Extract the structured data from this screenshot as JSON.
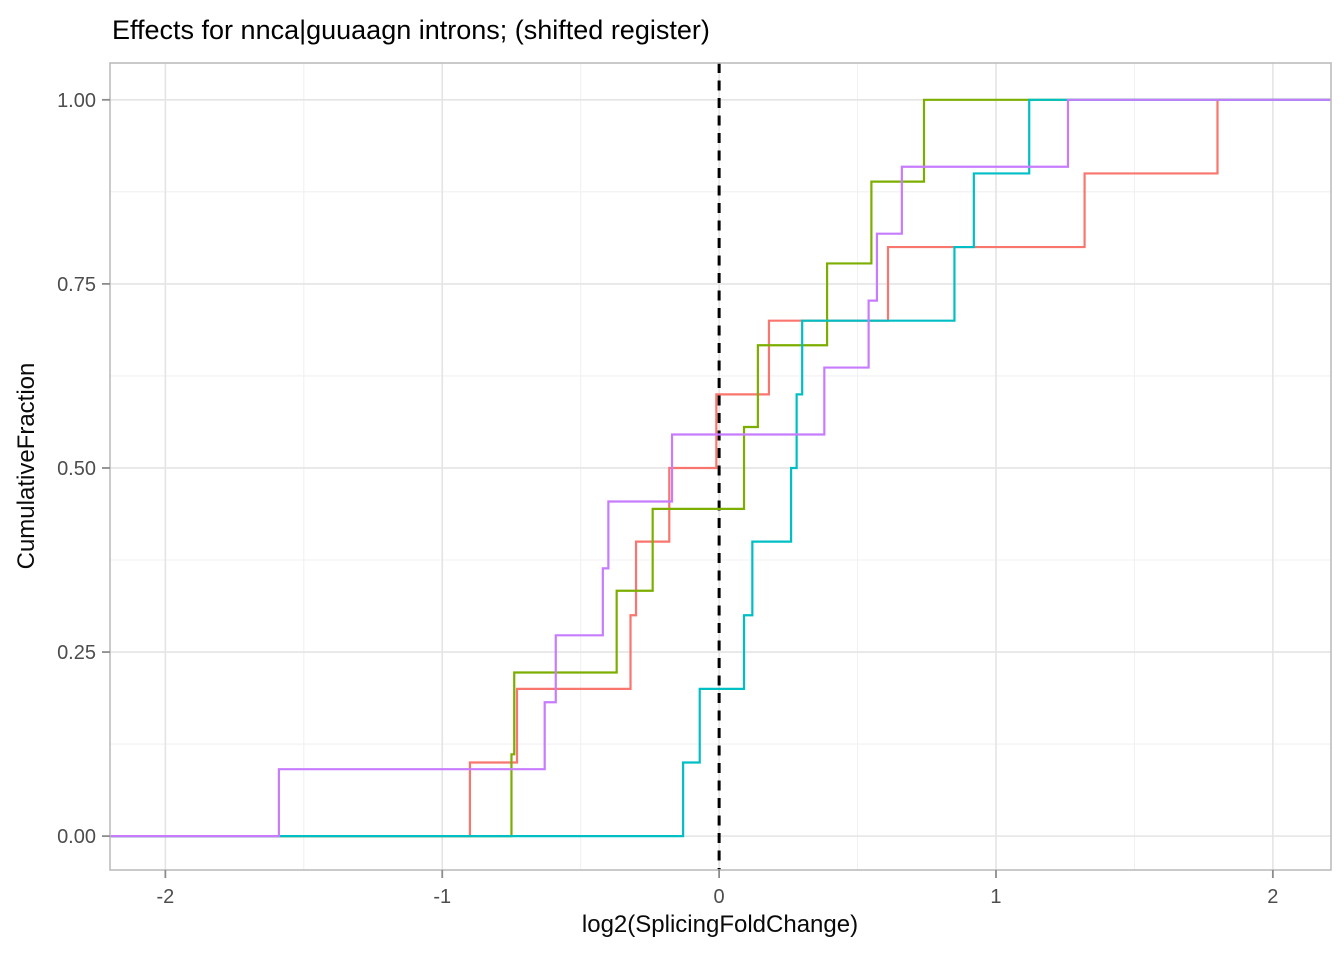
{
  "chart_data": {
    "type": "line",
    "subtype": "ecdf_step",
    "title": "Effects for nnca|guuaagn introns; (shifted register)",
    "xlabel": "log2(SplicingFoldChange)",
    "ylabel": "CumulativeFraction",
    "xlim": [
      -2.2,
      2.21
    ],
    "ylim": [
      -0.046,
      1.05
    ],
    "grid": true,
    "legend": "none",
    "x_ticks": [
      {
        "v": -2,
        "label": "-2"
      },
      {
        "v": -1,
        "label": "-1"
      },
      {
        "v": 0,
        "label": "0"
      },
      {
        "v": 1,
        "label": "1"
      },
      {
        "v": 2,
        "label": "2"
      }
    ],
    "y_ticks": [
      {
        "v": 0.0,
        "label": "0.00"
      },
      {
        "v": 0.25,
        "label": "0.25"
      },
      {
        "v": 0.5,
        "label": "0.50"
      },
      {
        "v": 0.75,
        "label": "0.75"
      },
      {
        "v": 1.0,
        "label": "1.00"
      }
    ],
    "x_minor": [
      -1.5,
      -0.5,
      0.5,
      1.5
    ],
    "y_minor": [
      0.125,
      0.375,
      0.625,
      0.875
    ],
    "vline": {
      "x": 0,
      "color": "#000000",
      "style": "dashed",
      "width": 3,
      "dash": "10 7.5"
    },
    "series": [
      {
        "name": "salmon",
        "color": "#F8766D",
        "n": 10,
        "points": [
          [
            -0.9,
            0.1
          ],
          [
            -0.73,
            0.2
          ],
          [
            -0.32,
            0.3
          ],
          [
            -0.3,
            0.4
          ],
          [
            -0.18,
            0.5
          ],
          [
            -0.01,
            0.6
          ],
          [
            0.18,
            0.7
          ],
          [
            0.61,
            0.8
          ],
          [
            1.32,
            0.9
          ],
          [
            1.8,
            1.0
          ]
        ]
      },
      {
        "name": "olive",
        "color": "#7CAE00",
        "n": 9,
        "points": [
          [
            -0.75,
            0.1111
          ],
          [
            -0.74,
            0.2222
          ],
          [
            -0.37,
            0.3333
          ],
          [
            -0.24,
            0.4444
          ],
          [
            0.09,
            0.5556
          ],
          [
            0.14,
            0.6667
          ],
          [
            0.39,
            0.7778
          ],
          [
            0.55,
            0.8889
          ],
          [
            0.74,
            1.0
          ]
        ]
      },
      {
        "name": "teal",
        "color": "#00BFC4",
        "n": 10,
        "points": [
          [
            -0.13,
            0.1
          ],
          [
            -0.07,
            0.2
          ],
          [
            0.09,
            0.3
          ],
          [
            0.12,
            0.4
          ],
          [
            0.26,
            0.5
          ],
          [
            0.28,
            0.6
          ],
          [
            0.3,
            0.7
          ],
          [
            0.85,
            0.8
          ],
          [
            0.92,
            0.9
          ],
          [
            1.12,
            1.0
          ]
        ]
      },
      {
        "name": "purple",
        "color": "#C77CFF",
        "n": 11,
        "points": [
          [
            -1.59,
            0.0909
          ],
          [
            -0.63,
            0.1818
          ],
          [
            -0.59,
            0.2727
          ],
          [
            -0.42,
            0.3636
          ],
          [
            -0.4,
            0.4545
          ],
          [
            -0.17,
            0.5455
          ],
          [
            0.38,
            0.6364
          ],
          [
            0.54,
            0.7273
          ],
          [
            0.57,
            0.8182
          ],
          [
            0.66,
            0.9091
          ],
          [
            1.26,
            1.0
          ]
        ]
      }
    ],
    "style": {
      "panel_bg": "#ffffff",
      "grid_major": "#e4e4e4",
      "grid_minor": "#f1f1f1",
      "panel_border": "#bdbdbd",
      "tick_color": "#8c8c8c",
      "tick_label_color": "#4d4d4d",
      "line_width": 2.2
    }
  }
}
